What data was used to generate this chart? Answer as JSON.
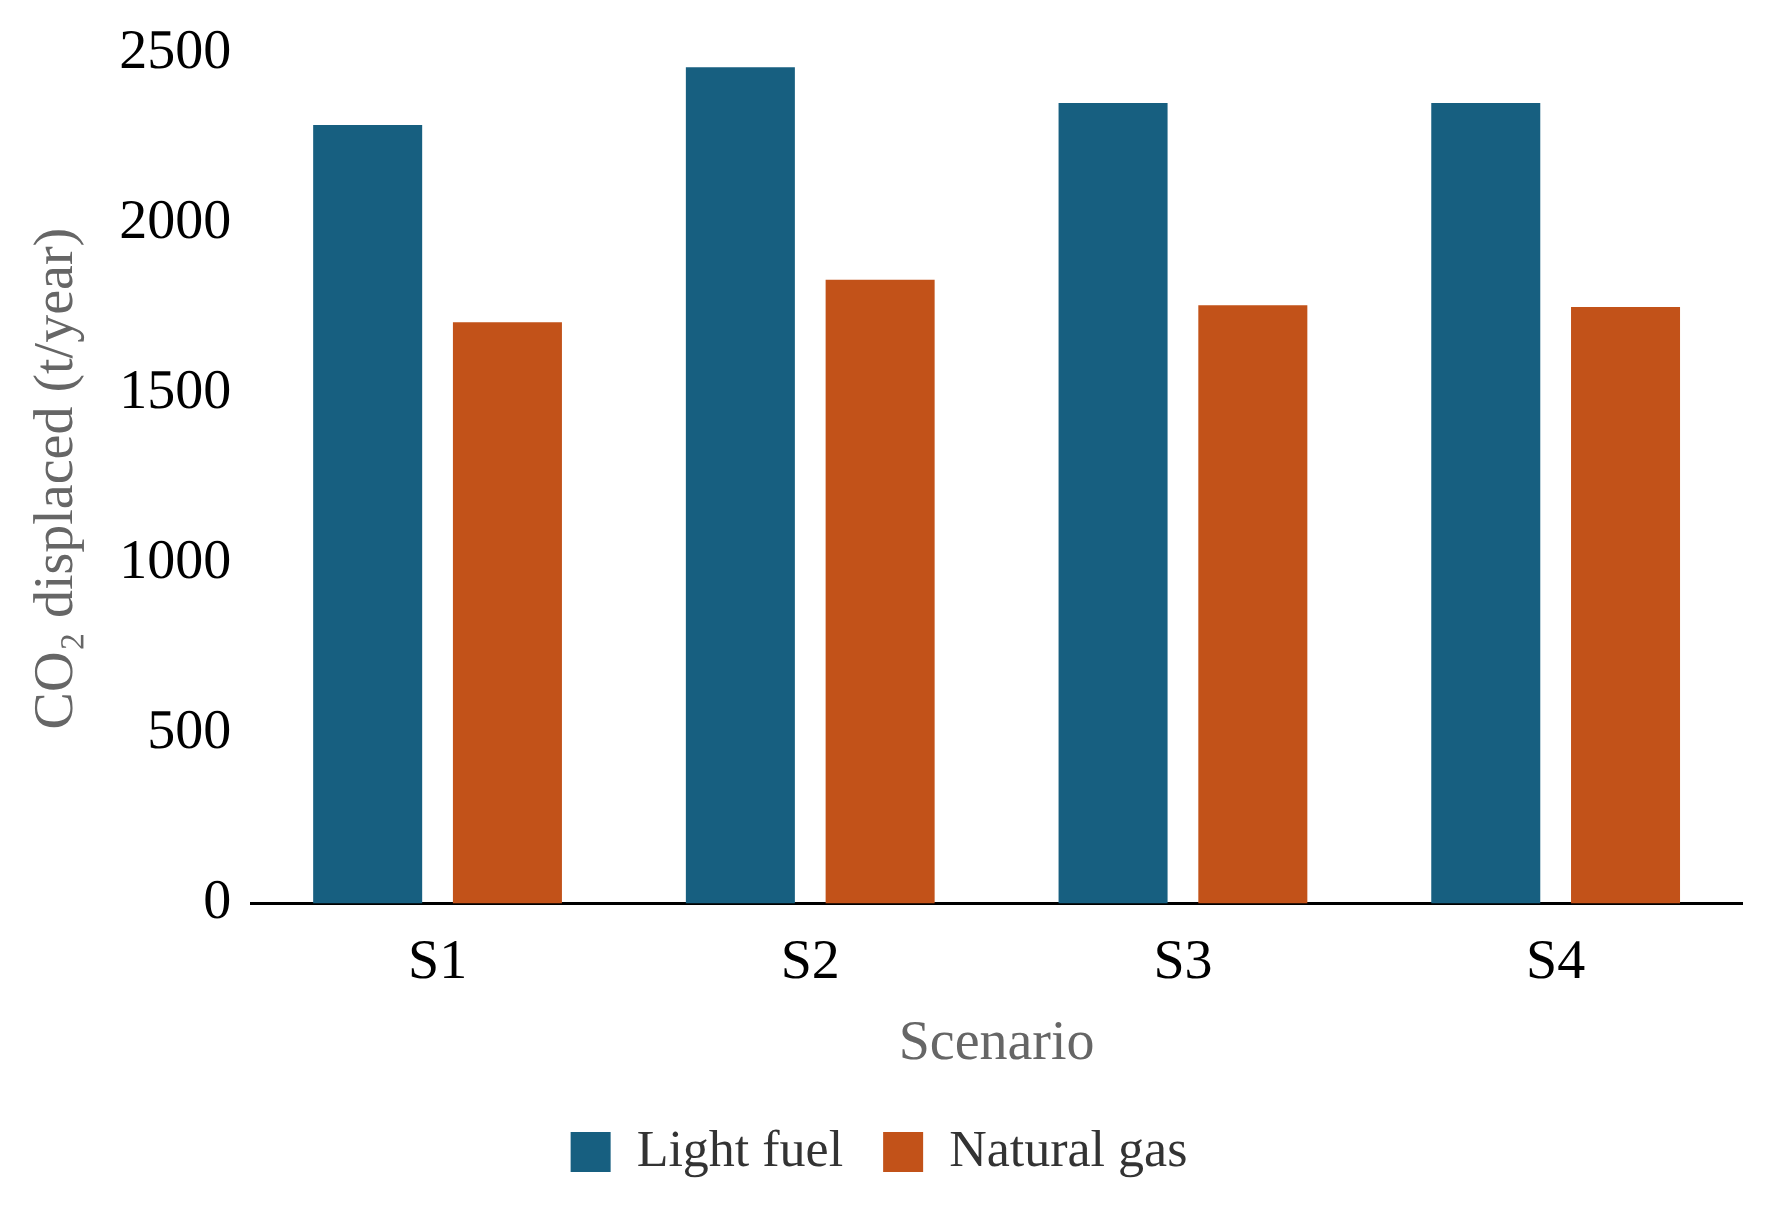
{
  "chart_data": {
    "type": "bar",
    "xlabel": "Scenario",
    "ylabel": "CO₂ displaced (t/year)",
    "categories": [
      "S1",
      "S2",
      "S3",
      "S4"
    ],
    "series": [
      {
        "name": "Light fuel",
        "color": "#175f80",
        "values": [
          2290,
          2460,
          2355,
          2355
        ]
      },
      {
        "name": "Natural gas",
        "color": "#c25219",
        "values": [
          1710,
          1835,
          1760,
          1755
        ]
      }
    ],
    "ylim": [
      0,
      2500
    ],
    "yticks": [
      0,
      500,
      1000,
      1500,
      2000,
      2500
    ],
    "grid": false,
    "legend": "bottom"
  }
}
